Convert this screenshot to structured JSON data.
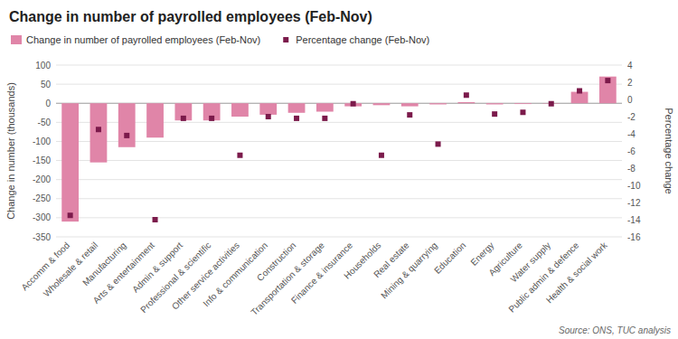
{
  "chart_data": {
    "type": "bar",
    "title": "Change in number of payrolled employees (Feb-Nov)",
    "categories": [
      "Accomm & food",
      "Wholesale & retail",
      "Manufacturing",
      "Arts & entertainment",
      "Admin & support",
      "Professional & scientific",
      "Other service activities",
      "Info & communication",
      "Construction",
      "Transportation & storage",
      "Finance & insurance",
      "Households",
      "Real estate",
      "Mining & quarrying",
      "Education",
      "Energy",
      "Agriculture",
      "Water supply",
      "Public admin & defence",
      "Health & social work"
    ],
    "series": [
      {
        "name": "Change in number of payrolled employees (Feb-Nov)",
        "type": "bar",
        "color": "#e085a8",
        "values": [
          -310,
          -155,
          -115,
          -90,
          -45,
          -45,
          -35,
          -30,
          -25,
          -22,
          -8,
          -5,
          -8,
          -3,
          3,
          -3,
          -2,
          -1,
          30,
          70
        ]
      },
      {
        "name": "Percentage change (Feb-Nov)",
        "type": "scatter",
        "marker": "square",
        "color": "#7b1a4b",
        "axis": "y2",
        "values": [
          -13.5,
          -3.5,
          -4.2,
          -14.0,
          -2.2,
          -2.2,
          -6.5,
          -2.0,
          -2.2,
          -2.2,
          -0.5,
          -6.5,
          -1.8,
          -5.2,
          0.5,
          -1.7,
          -1.5,
          -0.5,
          1.0,
          2.2
        ]
      }
    ],
    "ylabel": "Change in number (thousands)",
    "y2label": "Percentage change",
    "ylim": [
      -350,
      100
    ],
    "yticks": [
      -350,
      -300,
      -250,
      -200,
      -150,
      -100,
      -50,
      0,
      50,
      100
    ],
    "y2lim": [
      -16,
      4
    ],
    "y2ticks": [
      -16,
      -14,
      -12,
      -10,
      -8,
      -6,
      -4,
      -2,
      0,
      2,
      4
    ],
    "grid": true,
    "legend": "top-left",
    "annotations": [
      "Source: ONS, TUC analysis"
    ]
  }
}
